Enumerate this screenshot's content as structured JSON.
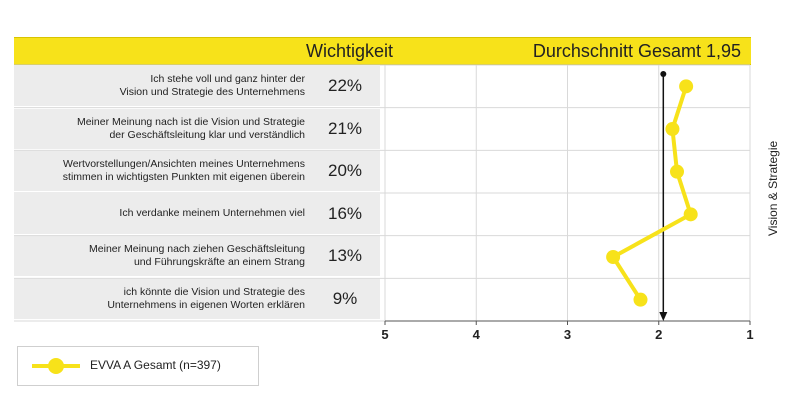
{
  "header": {
    "weight_label": "Wichtigkeit",
    "average_label": "Durchschnitt Gesamt 1,95"
  },
  "section_label": "Vision & Strategie",
  "rows": [
    {
      "line1": "Ich stehe voll und ganz hinter der",
      "line2": "Vision und Strategie des Unternehmens",
      "weight": "22%"
    },
    {
      "line1": "Meiner Meinung nach ist die Vision und Strategie",
      "line2": "der Geschäftsleitung klar und verständlich",
      "weight": "21%"
    },
    {
      "line1": "Wertvorstellungen/Ansichten meines Unternehmens",
      "line2": "stimmen in wichtigsten Punkten mit eigenen überein",
      "weight": "20%"
    },
    {
      "line1": "Ich verdanke meinem Unternehmen viel",
      "line2": "",
      "weight": "16%"
    },
    {
      "line1": "Meiner Meinung nach ziehen Geschäftsleitung",
      "line2": "und Führungskräfte an einem Strang",
      "weight": "13%"
    },
    {
      "line1": "ich könnte die Vision und Strategie des",
      "line2": "Unternehmens in eigenen Worten erklären",
      "weight": "9%"
    }
  ],
  "legend": {
    "label": "EVVA A Gesamt (n=397)"
  },
  "colors": {
    "series": "#f7e21a",
    "header": "#f7e21a",
    "row_background": "#ececec",
    "grid": "#d9d9d9",
    "average_line": "#111111"
  },
  "chart_data": {
    "type": "line",
    "orientation": "horizontal",
    "categories": [
      "Ich stehe voll und ganz hinter der Vision und Strategie des Unternehmens",
      "Meiner Meinung nach ist die Vision und Strategie der Geschäftsleitung klar und verständlich",
      "Wertvorstellungen/Ansichten meines Unternehmens stimmen in wichtigsten Punkten mit eigenen überein",
      "Ich verdanke meinem Unternehmen viel",
      "Meiner Meinung nach ziehen Geschäftsleitung und Führungskräfte an einem Strang",
      "ich könnte die Vision und Strategie des Unternehmens in eigenen Worten erklären"
    ],
    "series": [
      {
        "name": "EVVA A Gesamt (n=397)",
        "values": [
          1.7,
          1.85,
          1.8,
          1.65,
          2.5,
          2.2
        ]
      }
    ],
    "xlim": [
      5,
      1
    ],
    "xticks": [
      "5",
      "4",
      "3",
      "2",
      "1"
    ],
    "average": 1.95,
    "grid": true,
    "legend": "bottom-left"
  }
}
